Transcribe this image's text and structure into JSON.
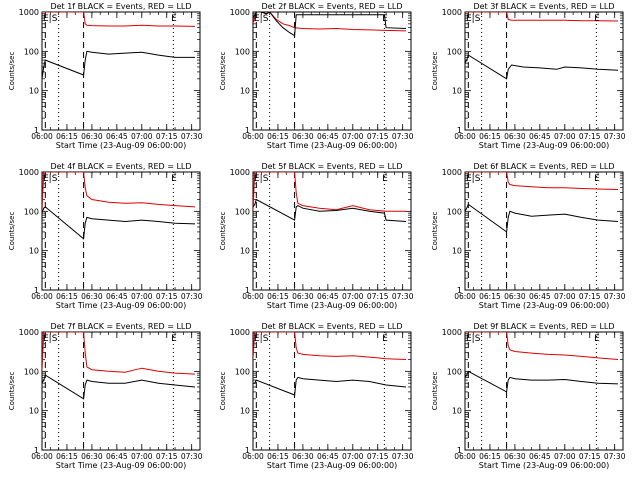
{
  "figure": {
    "xlabel": "Start Time (23-Aug-09 06:00:00)",
    "ylabel": "Counts/sec",
    "x_tick_labels": [
      "06:00",
      "06:15",
      "06:30",
      "06:45",
      "07:00",
      "07:15",
      "07:30"
    ],
    "y_tick_labels": [
      "1",
      "10",
      "100",
      "1000"
    ],
    "colors": {
      "events": "#000000",
      "lld": "#e00000"
    },
    "marker_labels": {
      "e_s": "E|S",
      "e": "E"
    }
  },
  "chart_data": [
    {
      "type": "line",
      "title": "Det 1f BLACK = Events, RED = LLD",
      "x_unit": "minutes after 06:00",
      "xlim": [
        0,
        95
      ],
      "ylim": [
        1,
        1000
      ],
      "yscale": "log",
      "x_ticks": [
        0,
        15,
        30,
        45,
        60,
        75,
        90
      ],
      "dashed_lines": [
        2,
        25
      ],
      "dotted_lines": [
        10,
        79
      ],
      "markers": [
        {
          "label": "E|S",
          "x": 0
        },
        {
          "label": "E",
          "x": 77
        }
      ],
      "series": [
        {
          "key": "lld",
          "x": [
            0,
            1,
            2,
            25,
            26,
            27,
            30,
            40,
            50,
            60,
            70,
            80,
            92
          ],
          "y": [
            1000,
            1000,
            1000,
            1000,
            500,
            460,
            450,
            440,
            440,
            460,
            440,
            440,
            430
          ]
        },
        {
          "key": "events",
          "x": [
            0,
            1,
            2,
            25,
            26,
            27,
            30,
            40,
            50,
            60,
            70,
            80,
            92
          ],
          "y": [
            20,
            40,
            60,
            25,
            60,
            100,
            95,
            85,
            90,
            95,
            80,
            70,
            70
          ]
        }
      ]
    },
    {
      "type": "line",
      "title": "Det 2f BLACK = Events, RED = LLD",
      "x_unit": "minutes after 06:00",
      "xlim": [
        0,
        95
      ],
      "ylim": [
        1,
        1000
      ],
      "yscale": "log",
      "x_ticks": [
        0,
        15,
        30,
        45,
        60,
        75,
        90
      ],
      "dashed_lines": [
        2,
        25
      ],
      "dotted_lines": [
        10,
        79
      ],
      "markers": [
        {
          "label": "E|S",
          "x": 0
        },
        {
          "label": "E",
          "x": 77
        }
      ],
      "series": [
        {
          "key": "lld",
          "x": [
            0,
            2,
            5,
            8,
            10,
            14,
            18,
            22,
            25,
            30,
            40,
            50,
            60,
            70,
            80,
            92
          ],
          "y": [
            500,
            1000,
            1000,
            900,
            1000,
            650,
            500,
            450,
            400,
            380,
            370,
            380,
            360,
            350,
            340,
            330
          ]
        },
        {
          "key": "events",
          "x": [
            0,
            2,
            5,
            8,
            10,
            14,
            18,
            22,
            25,
            26,
            79,
            80,
            92
          ],
          "y": [
            700,
            1000,
            1000,
            900,
            1000,
            600,
            400,
            300,
            250,
            850,
            850,
            400,
            380
          ]
        }
      ]
    },
    {
      "type": "line",
      "title": "Det 3f BLACK = Events, RED = LLD",
      "x_unit": "minutes after 06:00",
      "xlim": [
        0,
        95
      ],
      "ylim": [
        1,
        1000
      ],
      "yscale": "log",
      "x_ticks": [
        0,
        15,
        30,
        45,
        60,
        75,
        90
      ],
      "dashed_lines": [
        2,
        25
      ],
      "dotted_lines": [
        10,
        79
      ],
      "markers": [
        {
          "label": "E|S",
          "x": 0
        },
        {
          "label": "E",
          "x": 77
        }
      ],
      "series": [
        {
          "key": "lld",
          "x": [
            0,
            1,
            2,
            25,
            26,
            28,
            40,
            50,
            60,
            70,
            80,
            92
          ],
          "y": [
            1000,
            1000,
            1000,
            1000,
            650,
            620,
            620,
            620,
            620,
            600,
            600,
            590
          ]
        },
        {
          "key": "events",
          "x": [
            0,
            1,
            2,
            25,
            26,
            28,
            35,
            45,
            55,
            60,
            70,
            80,
            92
          ],
          "y": [
            50,
            60,
            80,
            20,
            35,
            45,
            40,
            38,
            35,
            40,
            38,
            35,
            33
          ]
        }
      ]
    },
    {
      "type": "line",
      "title": "Det 4f BLACK = Events, RED = LLD",
      "x_unit": "minutes after 06:00",
      "xlim": [
        0,
        95
      ],
      "ylim": [
        1,
        1000
      ],
      "yscale": "log",
      "x_ticks": [
        0,
        15,
        30,
        45,
        60,
        75,
        90
      ],
      "dashed_lines": [
        2,
        25
      ],
      "dotted_lines": [
        10,
        79
      ],
      "markers": [
        {
          "label": "E|S",
          "x": 0
        },
        {
          "label": "E",
          "x": 77
        }
      ],
      "series": [
        {
          "key": "lld",
          "x": [
            0,
            1,
            2,
            25,
            26,
            27,
            30,
            40,
            50,
            60,
            70,
            80,
            92
          ],
          "y": [
            100,
            1000,
            1000,
            1000,
            400,
            250,
            200,
            170,
            160,
            165,
            150,
            140,
            130
          ]
        },
        {
          "key": "events",
          "x": [
            0,
            1,
            2,
            25,
            26,
            27,
            30,
            40,
            50,
            60,
            70,
            80,
            92
          ],
          "y": [
            90,
            120,
            130,
            20,
            50,
            70,
            65,
            60,
            55,
            60,
            55,
            50,
            48
          ]
        }
      ]
    },
    {
      "type": "line",
      "title": "Det 5f BLACK = Events, RED = LLD",
      "x_unit": "minutes after 06:00",
      "xlim": [
        0,
        95
      ],
      "ylim": [
        1,
        1000
      ],
      "yscale": "log",
      "x_ticks": [
        0,
        15,
        30,
        45,
        60,
        75,
        90
      ],
      "dashed_lines": [
        2,
        25
      ],
      "dotted_lines": [
        10,
        79
      ],
      "markers": [
        {
          "label": "E|S",
          "x": 0
        },
        {
          "label": "E",
          "x": 77
        }
      ],
      "series": [
        {
          "key": "lld",
          "x": [
            0,
            1,
            2,
            25,
            26,
            27,
            30,
            40,
            50,
            60,
            70,
            80,
            92
          ],
          "y": [
            100,
            1000,
            1000,
            1000,
            300,
            160,
            140,
            120,
            110,
            140,
            110,
            100,
            100
          ]
        },
        {
          "key": "events",
          "x": [
            0,
            1,
            2,
            25,
            26,
            27,
            30,
            40,
            50,
            60,
            70,
            79,
            80,
            92
          ],
          "y": [
            130,
            150,
            200,
            60,
            130,
            140,
            120,
            100,
            105,
            120,
            100,
            90,
            60,
            55
          ]
        }
      ]
    },
    {
      "type": "line",
      "title": "Det 6f BLACK = Events, RED = LLD",
      "x_unit": "minutes after 06:00",
      "xlim": [
        0,
        95
      ],
      "ylim": [
        1,
        1000
      ],
      "yscale": "log",
      "x_ticks": [
        0,
        15,
        30,
        45,
        60,
        75,
        90
      ],
      "dashed_lines": [
        2,
        25
      ],
      "dotted_lines": [
        10,
        79
      ],
      "markers": [
        {
          "label": "E|S",
          "x": 0
        },
        {
          "label": "E",
          "x": 77
        }
      ],
      "series": [
        {
          "key": "lld",
          "x": [
            0,
            1,
            2,
            25,
            26,
            27,
            30,
            40,
            50,
            60,
            70,
            80,
            92
          ],
          "y": [
            1000,
            1000,
            1000,
            1000,
            550,
            480,
            450,
            420,
            400,
            400,
            380,
            370,
            360
          ]
        },
        {
          "key": "events",
          "x": [
            0,
            1,
            2,
            25,
            26,
            27,
            30,
            40,
            50,
            60,
            70,
            80,
            92
          ],
          "y": [
            100,
            120,
            150,
            30,
            70,
            100,
            90,
            75,
            80,
            85,
            70,
            60,
            55
          ]
        }
      ]
    },
    {
      "type": "line",
      "title": "Det 7f BLACK = Events, RED = LLD",
      "x_unit": "minutes after 06:00",
      "xlim": [
        0,
        95
      ],
      "ylim": [
        1,
        1000
      ],
      "yscale": "log",
      "x_ticks": [
        0,
        15,
        30,
        45,
        60,
        75,
        90
      ],
      "dashed_lines": [
        2,
        25
      ],
      "dotted_lines": [
        10,
        79
      ],
      "markers": [
        {
          "label": "E|S",
          "x": 0
        },
        {
          "label": "E",
          "x": 77
        }
      ],
      "series": [
        {
          "key": "lld",
          "x": [
            0,
            1,
            2,
            25,
            26,
            27,
            30,
            40,
            50,
            60,
            70,
            80,
            92
          ],
          "y": [
            100,
            1000,
            1000,
            1000,
            300,
            130,
            110,
            100,
            95,
            120,
            100,
            90,
            85
          ]
        },
        {
          "key": "events",
          "x": [
            0,
            1,
            2,
            25,
            26,
            27,
            30,
            40,
            50,
            60,
            70,
            80,
            92
          ],
          "y": [
            50,
            60,
            80,
            20,
            45,
            60,
            55,
            50,
            50,
            60,
            50,
            45,
            40
          ]
        }
      ]
    },
    {
      "type": "line",
      "title": "Det 8f BLACK = Events, RED = LLD",
      "x_unit": "minutes after 06:00",
      "xlim": [
        0,
        95
      ],
      "ylim": [
        1,
        1000
      ],
      "yscale": "log",
      "x_ticks": [
        0,
        15,
        30,
        45,
        60,
        75,
        90
      ],
      "dashed_lines": [
        2,
        25
      ],
      "dotted_lines": [
        10,
        79
      ],
      "markers": [
        {
          "label": "E|S",
          "x": 0
        },
        {
          "label": "E",
          "x": 77
        }
      ],
      "series": [
        {
          "key": "lld",
          "x": [
            0,
            1,
            2,
            25,
            26,
            27,
            30,
            40,
            50,
            60,
            70,
            80,
            92
          ],
          "y": [
            200,
            1000,
            1000,
            1000,
            400,
            290,
            270,
            250,
            240,
            250,
            230,
            210,
            200
          ]
        },
        {
          "key": "events",
          "x": [
            0,
            1,
            2,
            25,
            26,
            27,
            30,
            40,
            50,
            60,
            70,
            80,
            92
          ],
          "y": [
            50,
            50,
            60,
            25,
            60,
            70,
            65,
            60,
            55,
            60,
            55,
            45,
            40
          ]
        }
      ]
    },
    {
      "type": "line",
      "title": "Det 9f BLACK = Events, RED = LLD",
      "x_unit": "minutes after 06:00",
      "xlim": [
        0,
        95
      ],
      "ylim": [
        1,
        1000
      ],
      "yscale": "log",
      "x_ticks": [
        0,
        15,
        30,
        45,
        60,
        75,
        90
      ],
      "dashed_lines": [
        2,
        25
      ],
      "dotted_lines": [
        10,
        79
      ],
      "markers": [
        {
          "label": "E|S",
          "x": 0
        },
        {
          "label": "E",
          "x": 77
        }
      ],
      "series": [
        {
          "key": "lld",
          "x": [
            0,
            1,
            2,
            25,
            26,
            27,
            30,
            40,
            50,
            60,
            70,
            80,
            92
          ],
          "y": [
            1000,
            1000,
            1000,
            1000,
            450,
            350,
            320,
            290,
            270,
            260,
            240,
            220,
            200
          ]
        },
        {
          "key": "events",
          "x": [
            0,
            1,
            2,
            25,
            26,
            27,
            30,
            40,
            50,
            60,
            70,
            80,
            92
          ],
          "y": [
            70,
            80,
            100,
            30,
            60,
            70,
            65,
            60,
            60,
            62,
            55,
            50,
            48
          ]
        }
      ]
    }
  ]
}
